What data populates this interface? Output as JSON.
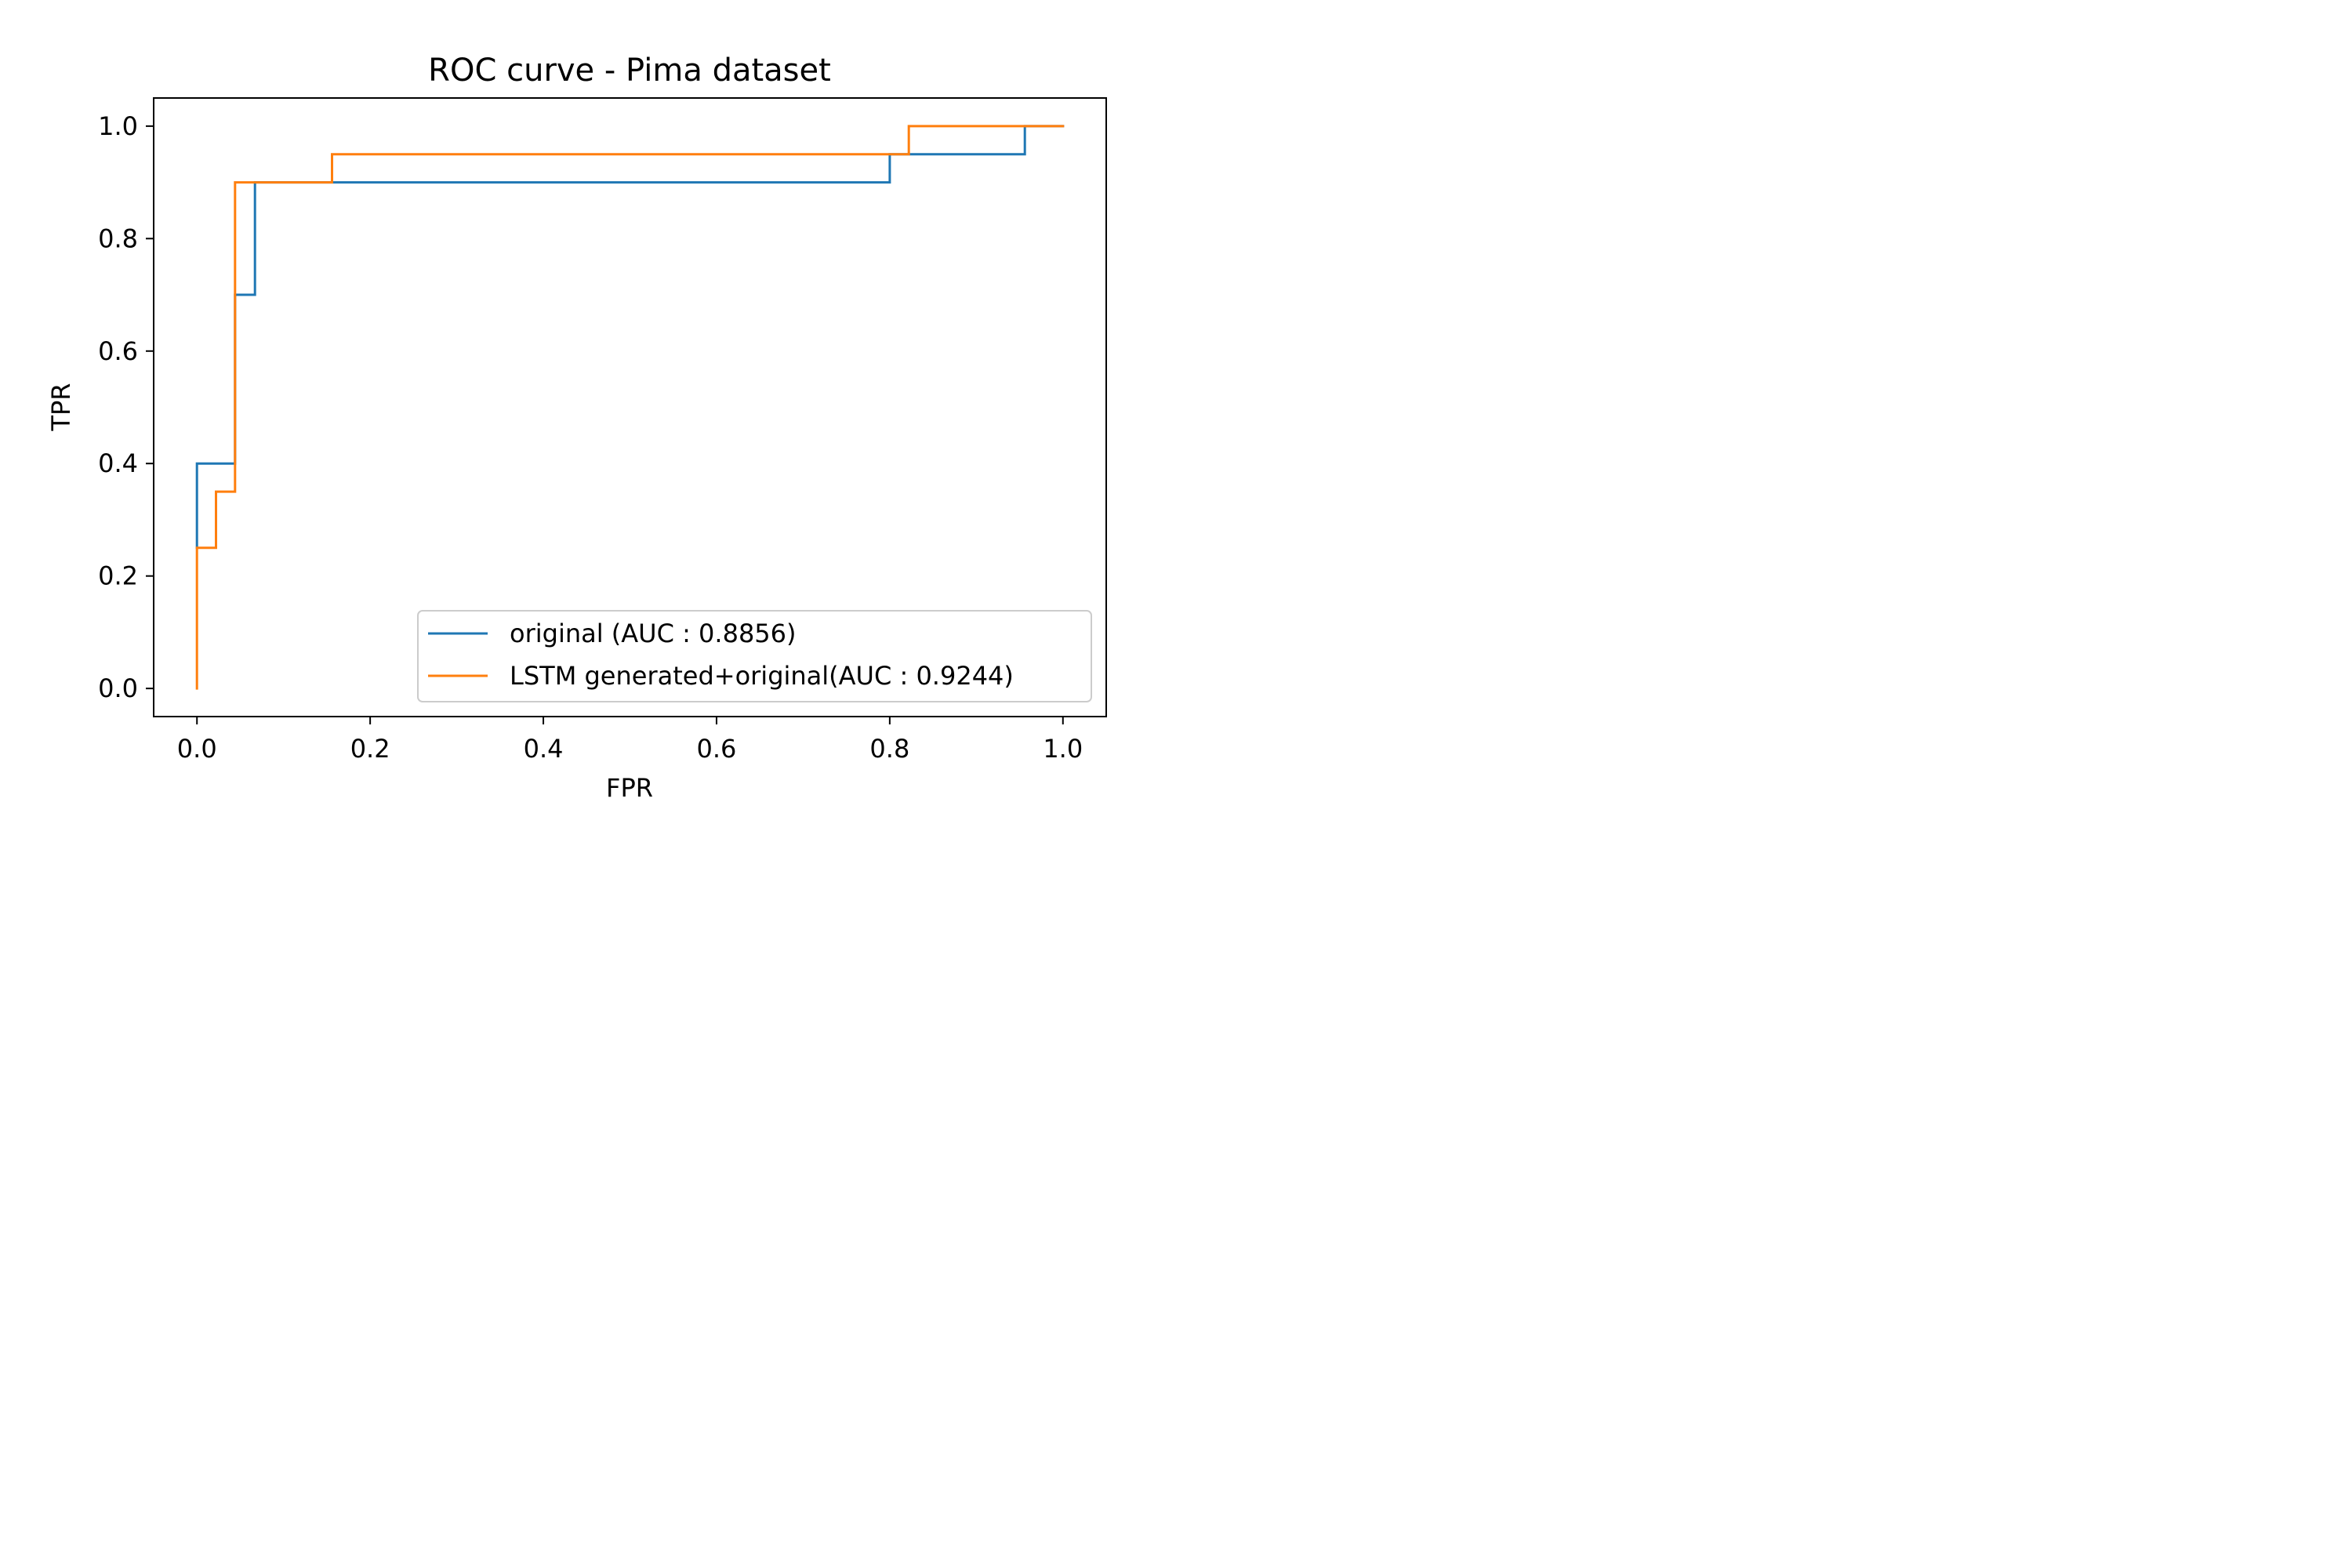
{
  "chart_data": {
    "type": "line",
    "title": "ROC curve - Pima dataset",
    "xlabel": "FPR",
    "ylabel": "TPR",
    "xlim": [
      -0.05,
      1.05
    ],
    "ylim": [
      -0.05,
      1.05
    ],
    "xticks": [
      0.0,
      0.2,
      0.4,
      0.6,
      0.8,
      1.0
    ],
    "xtick_labels": [
      "0.0",
      "0.2",
      "0.4",
      "0.6",
      "0.8",
      "1.0"
    ],
    "yticks": [
      0.0,
      0.2,
      0.4,
      0.6,
      0.8,
      1.0
    ],
    "ytick_labels": [
      "0.0",
      "0.2",
      "0.4",
      "0.6",
      "0.8",
      "1.0"
    ],
    "grid": false,
    "legend_position": "lower-right",
    "series": [
      {
        "name": "original (AUC : 0.8856)",
        "color": "#1f77b4",
        "points": [
          [
            0.0,
            0.25
          ],
          [
            0.0,
            0.4
          ],
          [
            0.044,
            0.4
          ],
          [
            0.044,
            0.7
          ],
          [
            0.067,
            0.7
          ],
          [
            0.067,
            0.9
          ],
          [
            0.8,
            0.9
          ],
          [
            0.8,
            0.95
          ],
          [
            0.956,
            0.95
          ],
          [
            0.956,
            1.0
          ],
          [
            1.0,
            1.0
          ]
        ]
      },
      {
        "name": "LSTM generated+original(AUC : 0.9244)",
        "color": "#ff7f0e",
        "points": [
          [
            0.0,
            0.0
          ],
          [
            0.0,
            0.25
          ],
          [
            0.022,
            0.25
          ],
          [
            0.022,
            0.35
          ],
          [
            0.044,
            0.35
          ],
          [
            0.044,
            0.9
          ],
          [
            0.156,
            0.9
          ],
          [
            0.156,
            0.95
          ],
          [
            0.822,
            0.95
          ],
          [
            0.822,
            1.0
          ],
          [
            1.0,
            1.0
          ]
        ]
      }
    ]
  }
}
